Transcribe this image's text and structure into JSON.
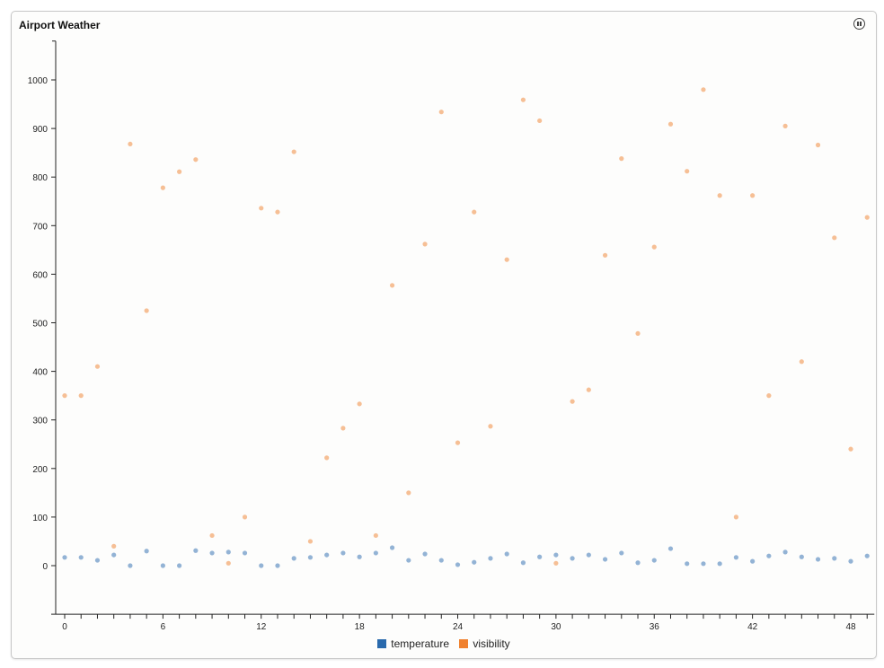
{
  "header": {
    "title": "Airport Weather",
    "pause_icon": "pause-circle-icon"
  },
  "chart_data": {
    "type": "scatter",
    "title": "Airport Weather",
    "xlim": [
      0,
      49
    ],
    "ylim": [
      -100,
      1080
    ],
    "x_ticks": [
      0,
      6,
      12,
      18,
      24,
      30,
      36,
      42,
      48
    ],
    "y_ticks": [
      0,
      100,
      200,
      300,
      400,
      500,
      600,
      700,
      800,
      900,
      1000
    ],
    "grid": false,
    "legend": "bottom",
    "x": [
      0,
      1,
      2,
      3,
      4,
      5,
      6,
      7,
      8,
      9,
      10,
      11,
      12,
      13,
      14,
      15,
      16,
      17,
      18,
      19,
      20,
      21,
      22,
      23,
      24,
      25,
      26,
      27,
      28,
      29,
      30,
      31,
      32,
      33,
      34,
      35,
      36,
      37,
      38,
      39,
      40,
      41,
      42,
      43,
      44,
      45,
      46,
      47,
      48,
      49
    ],
    "series": [
      {
        "name": "temperature",
        "color": "#2a6aad",
        "values": [
          17,
          17,
          11,
          22,
          0,
          30,
          0,
          0,
          31,
          26,
          28,
          26,
          0,
          0,
          15,
          17,
          22,
          26,
          18,
          26,
          37,
          11,
          24,
          11,
          2,
          7,
          15,
          24,
          6,
          18,
          22,
          15,
          22,
          13,
          26,
          6,
          11,
          35,
          4,
          4,
          4,
          17,
          9,
          20,
          28,
          18,
          13,
          15,
          9,
          20
        ]
      },
      {
        "name": "visibility",
        "color": "#f0812e",
        "values": [
          350,
          350,
          410,
          40,
          868,
          525,
          778,
          811,
          836,
          62,
          5,
          100,
          736,
          728,
          852,
          50,
          222,
          283,
          333,
          62,
          577,
          150,
          662,
          934,
          253,
          728,
          287,
          630,
          959,
          916,
          5,
          338,
          362,
          639,
          838,
          478,
          656,
          909,
          812,
          980,
          762,
          100,
          762,
          350,
          905,
          420,
          866,
          675,
          240,
          717
        ]
      }
    ]
  }
}
